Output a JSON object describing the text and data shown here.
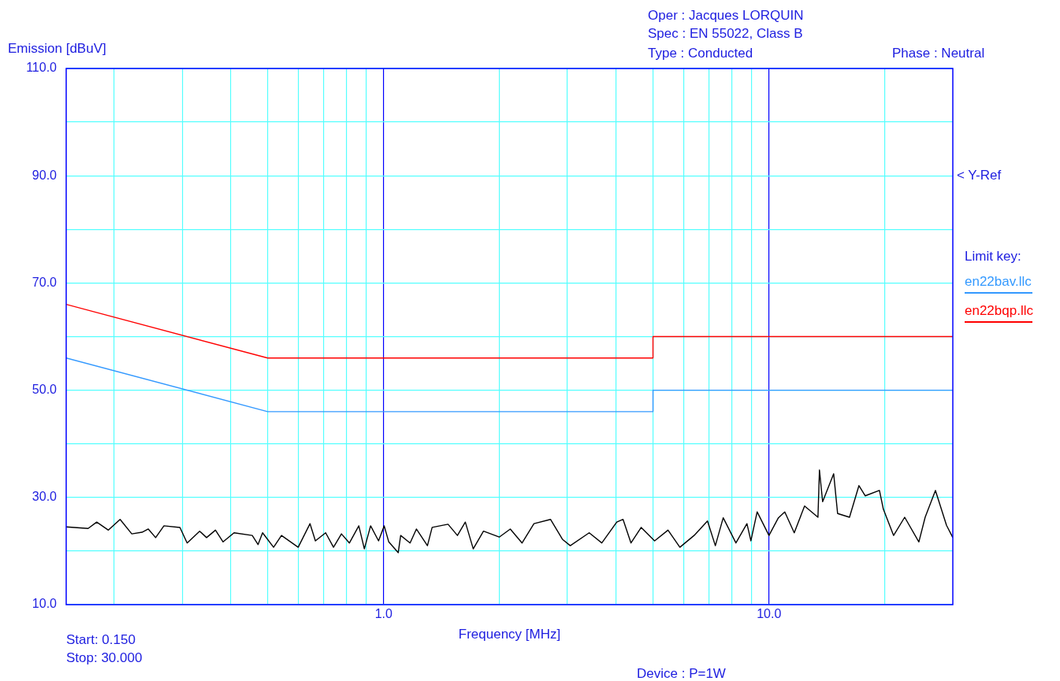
{
  "chart_data": {
    "type": "line",
    "xlabel": "Frequency [MHz]",
    "ylabel": "Emission [dBuV]",
    "legend_title": "Limit key:",
    "legend": "right",
    "grid": true,
    "log": "x",
    "marker": "none",
    "xlim": [
      0.15,
      30
    ],
    "ylim": [
      10,
      110
    ],
    "xticks": [
      {
        "value": 0.2,
        "label": null
      },
      {
        "value": 0.3,
        "label": null
      },
      {
        "value": 0.4,
        "label": null
      },
      {
        "value": 0.5,
        "label": null
      },
      {
        "value": 0.6,
        "label": null
      },
      {
        "value": 0.7,
        "label": null
      },
      {
        "value": 0.8,
        "label": null
      },
      {
        "value": 0.9,
        "label": null
      },
      {
        "value": 1,
        "label": "1.0"
      },
      {
        "value": 2,
        "label": null
      },
      {
        "value": 3,
        "label": null
      },
      {
        "value": 4,
        "label": null
      },
      {
        "value": 5,
        "label": null
      },
      {
        "value": 6,
        "label": null
      },
      {
        "value": 7,
        "label": null
      },
      {
        "value": 8,
        "label": null
      },
      {
        "value": 9,
        "label": null
      },
      {
        "value": 10,
        "label": "10.0"
      },
      {
        "value": 20,
        "label": null
      }
    ],
    "yticks": [
      {
        "value": 10,
        "label": "10.0"
      },
      {
        "value": 20,
        "label": null
      },
      {
        "value": 30,
        "label": "30.0"
      },
      {
        "value": 40,
        "label": null
      },
      {
        "value": 50,
        "label": "50.0"
      },
      {
        "value": 60,
        "label": null
      },
      {
        "value": 70,
        "label": "70.0"
      },
      {
        "value": 80,
        "label": null
      },
      {
        "value": 90,
        "label": "90.0"
      },
      {
        "value": 100,
        "label": null
      },
      {
        "value": 110,
        "label": "110.0"
      }
    ],
    "series": [
      {
        "name": "en22bav.llc",
        "color": "#3399ff",
        "x": [
          0.15,
          0.5,
          5,
          5,
          30
        ],
        "values": [
          56,
          46,
          46,
          50,
          50
        ]
      },
      {
        "name": "en22bqp.llc",
        "color": "#ff0000",
        "x": [
          0.15,
          0.5,
          5,
          5,
          30
        ],
        "values": [
          66,
          56,
          56,
          60,
          60
        ]
      },
      {
        "color": "#000000",
        "x": [
          0.15,
          0.171,
          0.18,
          0.193,
          0.207,
          0.222,
          0.236,
          0.245,
          0.256,
          0.269,
          0.296,
          0.309,
          0.333,
          0.347,
          0.366,
          0.383,
          0.409,
          0.456,
          0.472,
          0.485,
          0.518,
          0.543,
          0.6,
          0.644,
          0.665,
          0.707,
          0.741,
          0.777,
          0.815,
          0.862,
          0.891,
          0.925,
          0.97,
          1.003,
          1.031,
          1.091,
          1.107,
          1.171,
          1.216,
          1.299,
          1.336,
          1.469,
          1.554,
          1.629,
          1.708,
          1.816,
          1.995,
          2.131,
          2.287,
          2.455,
          2.71,
          2.91,
          3.05,
          3.415,
          3.683,
          4.027,
          4.181,
          4.384,
          4.66,
          5.049,
          5.47,
          5.872,
          6.393,
          6.925,
          7.258,
          7.607,
          8.207,
          8.766,
          8.975,
          9.318,
          10,
          10.58,
          10.99,
          11.63,
          12.37,
          13.4,
          13.52,
          13.78,
          14.72,
          15.07,
          16.18,
          17.12,
          17.78,
          19.35,
          19.81,
          21.06,
          22.5,
          24.49,
          25.43,
          27.04,
          28.89,
          30
        ],
        "values": [
          24.5,
          24.2,
          25.4,
          23.9,
          25.9,
          23.2,
          23.5,
          24.1,
          22.5,
          24.7,
          24.4,
          21.5,
          23.7,
          22.5,
          23.9,
          21.7,
          23.4,
          22.9,
          21.2,
          23.4,
          20.7,
          22.9,
          20.7,
          25.1,
          21.9,
          23.4,
          20.7,
          23.2,
          21.5,
          24.7,
          20.4,
          24.7,
          21.9,
          24.7,
          21.7,
          19.7,
          22.9,
          21.5,
          24.1,
          21,
          24.4,
          25,
          22.9,
          25.4,
          20.4,
          23.7,
          22.6,
          24.1,
          21.5,
          25.1,
          25.9,
          22.2,
          21,
          23.4,
          21.5,
          25.4,
          25.9,
          21.5,
          24.4,
          21.9,
          23.9,
          20.7,
          22.9,
          25.6,
          21,
          26.2,
          21.5,
          25.1,
          21.9,
          27.3,
          22.9,
          26.2,
          27.3,
          23.4,
          28.4,
          26.3,
          35.1,
          29.2,
          34.4,
          27,
          26.3,
          32.2,
          30.3,
          31.3,
          27.8,
          22.9,
          26.3,
          21.7,
          26.3,
          31.3,
          24.8,
          22.5
        ]
      }
    ],
    "annotations": [
      "Oper : Jacques LORQUIN",
      "Spec : EN 55022, Class B",
      "Type : Conducted",
      "Phase : Neutral",
      "< Y-Ref",
      "Start: 0.150",
      "Stop: 30.000",
      "Device : P=1W"
    ]
  }
}
